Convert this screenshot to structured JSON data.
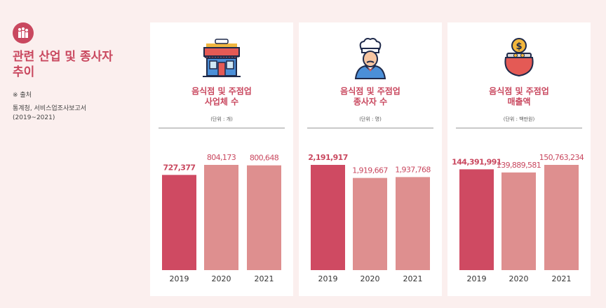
{
  "sidebar": {
    "title_line1": "관련 산업 및 종사자",
    "title_line2": "추이",
    "source_heading": "※ 출처",
    "source_line1": "통계청, 서비스업조사보고서",
    "source_line2": "(2019~2021)"
  },
  "colors": {
    "accent": "#c9485f",
    "bar_highlight": "#cf4a62",
    "bar_normal": "#de8f8f",
    "background": "#fbefee"
  },
  "panels": [
    {
      "icon": "restaurant-building-icon",
      "title_line1": "음식점 및 주점업",
      "title_line2": "사업체 수",
      "unit": "(단위 : 개)"
    },
    {
      "icon": "chef-icon",
      "title_line1": "음식점 및 주점업",
      "title_line2": "종사자 수",
      "unit": "(단위 : 명)"
    },
    {
      "icon": "coin-purse-icon",
      "title_line1": "음식점 및 주점업",
      "title_line2": "매출액",
      "unit": "(단위 : 백만원)"
    }
  ],
  "chart_data": [
    {
      "type": "bar",
      "title": "음식점 및 주점업 사업체 수",
      "unit": "(단위 : 개)",
      "categories": [
        "2019",
        "2020",
        "2021"
      ],
      "values": [
        727377,
        804173,
        800648
      ],
      "value_labels": [
        "727,377",
        "804,173",
        "800,648"
      ],
      "highlight_index": 0
    },
    {
      "type": "bar",
      "title": "음식점 및 주점업 종사자 수",
      "unit": "(단위 : 명)",
      "categories": [
        "2019",
        "2020",
        "2021"
      ],
      "values": [
        2191917,
        1919667,
        1937768
      ],
      "value_labels": [
        "2,191,917",
        "1,919,667",
        "1,937,768"
      ],
      "highlight_index": 0
    },
    {
      "type": "bar",
      "title": "음식점 및 주점업 매출액",
      "unit": "(단위 : 백만원)",
      "categories": [
        "2019",
        "2020",
        "2021"
      ],
      "values": [
        144391991,
        139889581,
        150763234
      ],
      "value_labels": [
        "144,391,991",
        "139,889,581",
        "150,763,234"
      ],
      "highlight_index": 0
    }
  ]
}
